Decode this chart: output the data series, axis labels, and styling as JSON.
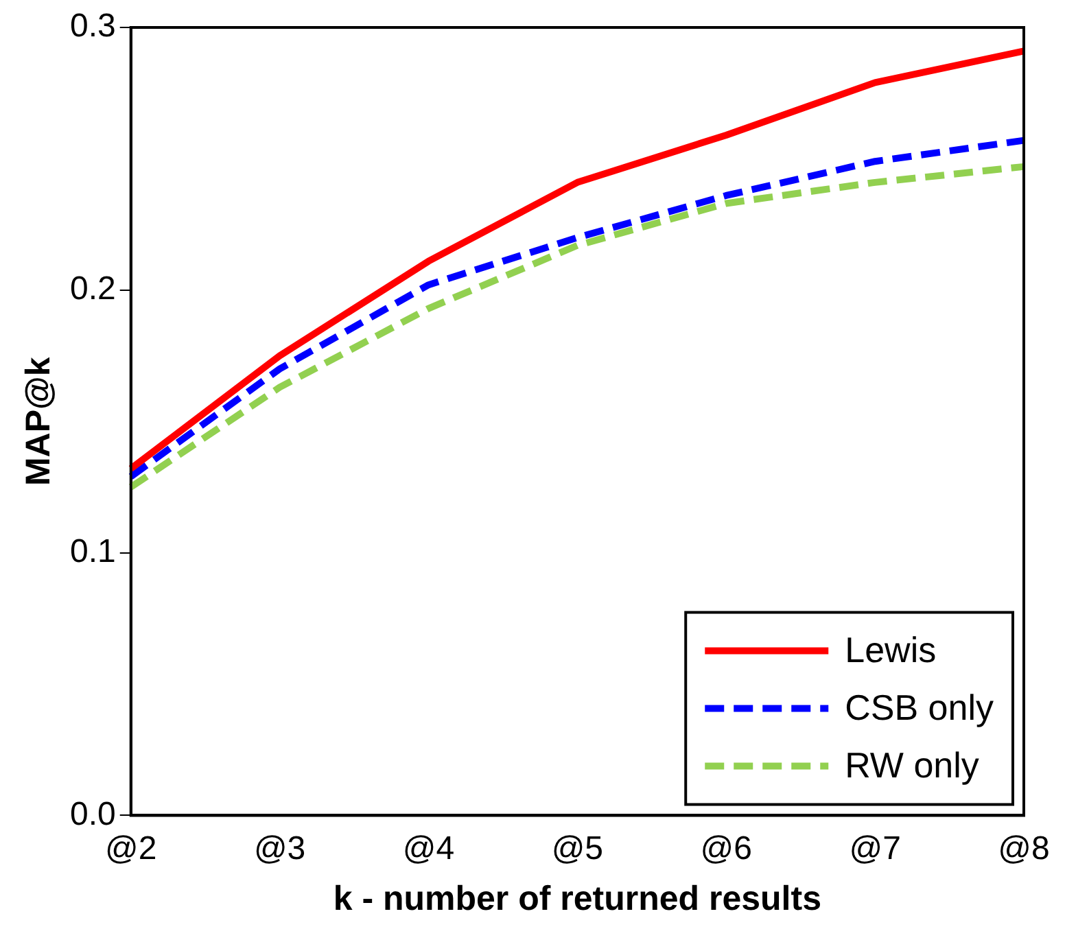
{
  "chart_data": {
    "type": "line",
    "xlabel": "k - number of returned results",
    "ylabel": "MAP@k",
    "categories": [
      "@2",
      "@3",
      "@4",
      "@5",
      "@6",
      "@7",
      "@8"
    ],
    "series": [
      {
        "name": "Lewis",
        "color": "#ff0000",
        "line_style": "solid",
        "values": [
          0.132,
          0.175,
          0.211,
          0.241,
          0.259,
          0.279,
          0.291
        ]
      },
      {
        "name": "CSB only",
        "color": "#0000ff",
        "line_style": "dashed",
        "values": [
          0.129,
          0.17,
          0.202,
          0.22,
          0.236,
          0.249,
          0.257
        ]
      },
      {
        "name": "RW only",
        "color": "#92d050",
        "line_style": "dashed",
        "values": [
          0.125,
          0.163,
          0.193,
          0.217,
          0.233,
          0.241,
          0.247
        ]
      }
    ],
    "ylim": [
      0,
      0.3
    ],
    "yticks": [
      {
        "value": 0,
        "label": "0.0"
      },
      0.1,
      0.2,
      0.3
    ],
    "grid": false,
    "legend": "bottom right",
    "marker": "none"
  }
}
